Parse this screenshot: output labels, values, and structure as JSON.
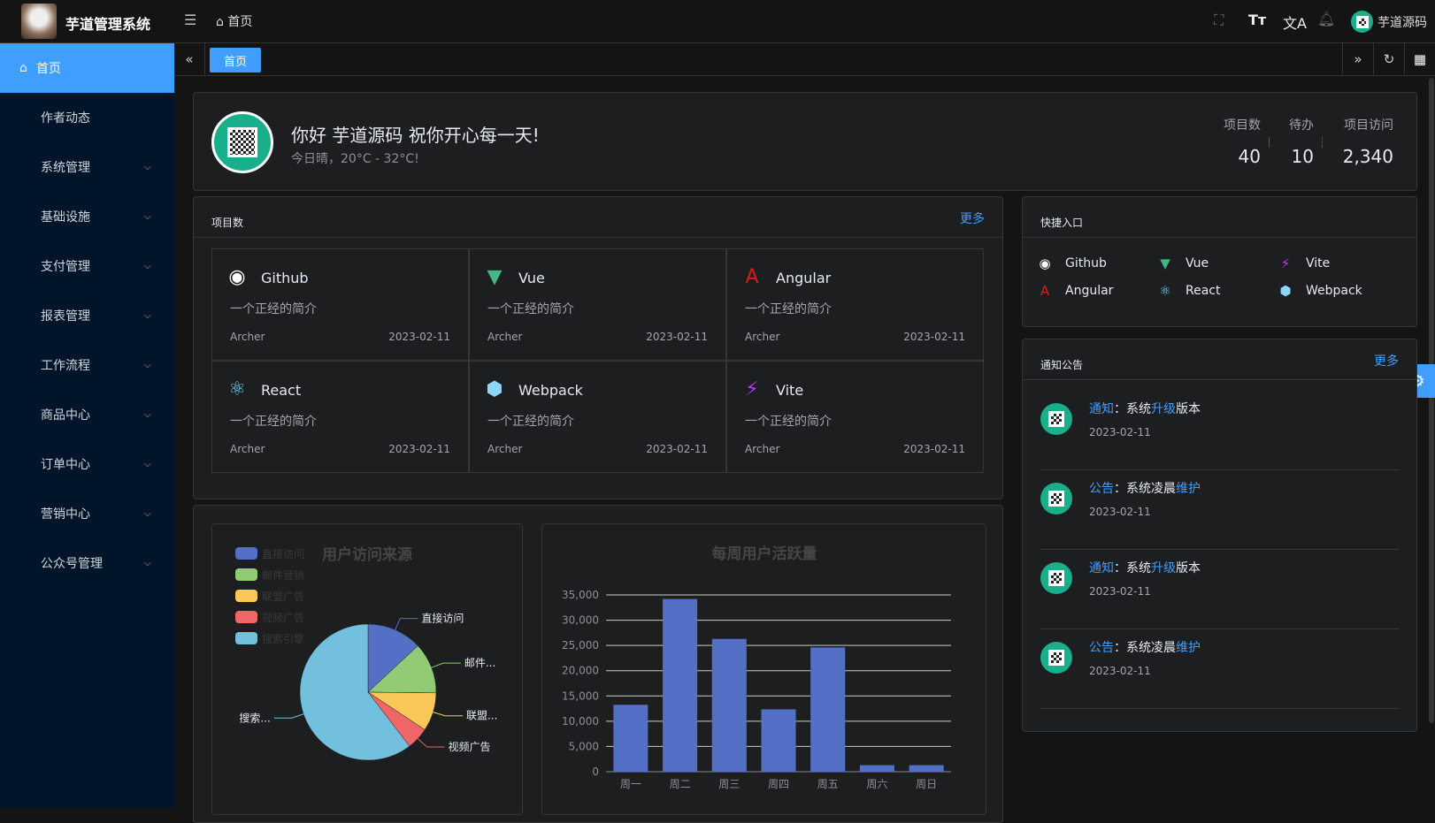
{
  "header": {
    "app_name": "芋道管理系统",
    "breadcrumb": "首页",
    "user_name": "芋道源码",
    "icons": [
      "menu-fold-icon",
      "fullscreen-icon",
      "font-size-icon",
      "translate-icon",
      "bell-icon"
    ]
  },
  "sidebar": {
    "items": [
      {
        "label": "首页",
        "active": true
      },
      {
        "label": "作者动态"
      },
      {
        "label": "系统管理",
        "expandable": true
      },
      {
        "label": "基础设施",
        "expandable": true
      },
      {
        "label": "支付管理",
        "expandable": true
      },
      {
        "label": "报表管理",
        "expandable": true
      },
      {
        "label": "工作流程",
        "expandable": true
      },
      {
        "label": "商品中心",
        "expandable": true
      },
      {
        "label": "订单中心",
        "expandable": true
      },
      {
        "label": "营销中心",
        "expandable": true
      },
      {
        "label": "公众号管理",
        "expandable": true
      }
    ]
  },
  "tabs": {
    "items": [
      {
        "label": "首页",
        "active": true
      }
    ]
  },
  "welcome": {
    "greeting": "你好 芋道源码 祝你开心每一天!",
    "weather": "今日晴，20°C - 32°C!",
    "stats": [
      {
        "label": "项目数",
        "value": "40"
      },
      {
        "label": "待办",
        "value": "10"
      },
      {
        "label": "项目访问",
        "value": "2,340"
      }
    ]
  },
  "projects": {
    "title": "项目数",
    "more": "更多",
    "items": [
      {
        "name": "Github",
        "icon": "github-icon",
        "color": "#ffffff",
        "desc": "一个正经的简介",
        "author": "Archer",
        "date": "2023-02-11"
      },
      {
        "name": "Vue",
        "icon": "vue-icon",
        "color": "#42b883",
        "desc": "一个正经的简介",
        "author": "Archer",
        "date": "2023-02-11"
      },
      {
        "name": "Angular",
        "icon": "angular-icon",
        "color": "#dd1b16",
        "desc": "一个正经的简介",
        "author": "Archer",
        "date": "2023-02-11"
      },
      {
        "name": "React",
        "icon": "react-icon",
        "color": "#61dafb",
        "desc": "一个正经的简介",
        "author": "Archer",
        "date": "2023-02-11"
      },
      {
        "name": "Webpack",
        "icon": "webpack-icon",
        "color": "#8ed6fb",
        "desc": "一个正经的简介",
        "author": "Archer",
        "date": "2023-02-11"
      },
      {
        "name": "Vite",
        "icon": "vite-icon",
        "color": "#bd34fe",
        "desc": "一个正经的简介",
        "author": "Archer",
        "date": "2023-02-11"
      }
    ]
  },
  "shortcuts": {
    "title": "快捷入口",
    "items": [
      {
        "name": "Github",
        "icon": "github-icon",
        "color": "#ffffff"
      },
      {
        "name": "Vue",
        "icon": "vue-icon",
        "color": "#42b883"
      },
      {
        "name": "Vite",
        "icon": "vite-icon",
        "color": "#bd34fe"
      },
      {
        "name": "Angular",
        "icon": "angular-icon",
        "color": "#dd1b16"
      },
      {
        "name": "React",
        "icon": "react-icon",
        "color": "#61dafb"
      },
      {
        "name": "Webpack",
        "icon": "webpack-icon",
        "color": "#8ed6fb"
      }
    ]
  },
  "notices": {
    "title": "通知公告",
    "more": "更多",
    "items": [
      {
        "type": "通知",
        "sep": "：",
        "pre": "系统",
        "hl": "升级",
        "post": "版本",
        "date": "2023-02-11"
      },
      {
        "type": "公告",
        "sep": "：",
        "pre": "系统凌晨",
        "hl": "维护",
        "post": "",
        "date": "2023-02-11"
      },
      {
        "type": "通知",
        "sep": "：",
        "pre": "系统",
        "hl": "升级",
        "post": "版本",
        "date": "2023-02-11"
      },
      {
        "type": "公告",
        "sep": "：",
        "pre": "系统凌晨",
        "hl": "维护",
        "post": "",
        "date": "2023-02-11"
      }
    ]
  },
  "chart_data": [
    {
      "type": "pie",
      "title": "用户访问来源",
      "legend_position": "top-left",
      "categories": [
        "直接访问",
        "邮件营销",
        "联盟广告",
        "视频广告",
        "搜索引擎"
      ],
      "slice_labels": [
        "直接访问",
        "邮件...",
        "联盟...",
        "视频广告",
        "搜索..."
      ],
      "values": [
        335,
        310,
        234,
        135,
        1548
      ],
      "colors": [
        "#5470c6",
        "#91cc75",
        "#fac858",
        "#ee6666",
        "#73c0de"
      ]
    },
    {
      "type": "bar",
      "title": "每周用户活跃量",
      "categories": [
        "周一",
        "周二",
        "周三",
        "周四",
        "周五",
        "周六",
        "周日"
      ],
      "values": [
        13250,
        34200,
        26300,
        12350,
        24600,
        1300,
        1300
      ],
      "ylim": [
        0,
        35000
      ],
      "yticks": [
        "0",
        "5,000",
        "10,000",
        "15,000",
        "20,000",
        "25,000",
        "30,000",
        "35,000"
      ],
      "grid": true,
      "color": "#5470c6"
    }
  ]
}
